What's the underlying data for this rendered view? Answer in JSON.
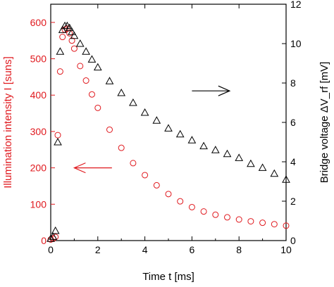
{
  "chart_data": {
    "type": "scatter",
    "xlabel": "Time t [ms]",
    "ylabel_left": "Illumination intensity I [suns]",
    "ylabel_right": "Bridge voltage ΔV_rf [mV]",
    "xlim": [
      0,
      10
    ],
    "ylim_left": [
      0,
      650
    ],
    "ylim_right": [
      0,
      12
    ],
    "x_ticks": [
      0,
      2,
      4,
      6,
      8,
      10
    ],
    "y_left_ticks": [
      0,
      100,
      200,
      300,
      400,
      500,
      600
    ],
    "y_right_ticks": [
      0,
      2,
      4,
      6,
      8,
      10,
      12
    ],
    "grid": false,
    "legend": "none",
    "colors": {
      "left": "#e0191e",
      "right": "#000000"
    },
    "series": [
      {
        "axis": "left",
        "marker": "circle",
        "color": "#e0191e",
        "x": [
          0.0,
          0.1,
          0.2,
          0.3,
          0.4,
          0.5,
          0.6,
          0.7,
          0.8,
          0.9,
          1.0,
          1.25,
          1.5,
          1.75,
          2.0,
          2.5,
          3.0,
          3.5,
          4.0,
          4.5,
          5.0,
          5.5,
          6.0,
          6.5,
          7.0,
          7.5,
          8.0,
          8.5,
          9.0,
          9.5,
          10.0
        ],
        "y": [
          3,
          5,
          10,
          290,
          465,
          560,
          580,
          583,
          570,
          550,
          528,
          480,
          440,
          402,
          365,
          305,
          255,
          213,
          180,
          152,
          128,
          108,
          92,
          80,
          71,
          64,
          58,
          53,
          49,
          45,
          41
        ]
      },
      {
        "axis": "right",
        "marker": "triangle",
        "color": "#000000",
        "x": [
          0.0,
          0.1,
          0.2,
          0.3,
          0.4,
          0.5,
          0.6,
          0.7,
          0.8,
          0.9,
          1.0,
          1.25,
          1.5,
          1.75,
          2.0,
          2.5,
          3.0,
          3.5,
          4.0,
          4.5,
          5.0,
          5.5,
          6.0,
          6.5,
          7.0,
          7.5,
          8.0,
          8.5,
          9.0,
          9.5,
          10.0
        ],
        "y": [
          0.1,
          0.2,
          0.5,
          5.0,
          9.6,
          10.7,
          10.9,
          10.9,
          10.8,
          10.6,
          10.4,
          10.0,
          9.6,
          9.2,
          8.8,
          8.1,
          7.5,
          7.0,
          6.5,
          6.1,
          5.7,
          5.4,
          5.1,
          4.8,
          4.6,
          4.4,
          4.2,
          3.9,
          3.7,
          3.4,
          3.1
        ]
      }
    ],
    "annotations": [
      {
        "type": "arrow",
        "direction": "left",
        "color": "#e0191e",
        "axis": "left",
        "x_from": 2.6,
        "x_to": 1.0,
        "y": 200
      },
      {
        "type": "arrow",
        "direction": "right",
        "color": "#000000",
        "axis": "right",
        "x_from": 6.0,
        "x_to": 7.6,
        "y": 7.6
      }
    ]
  }
}
